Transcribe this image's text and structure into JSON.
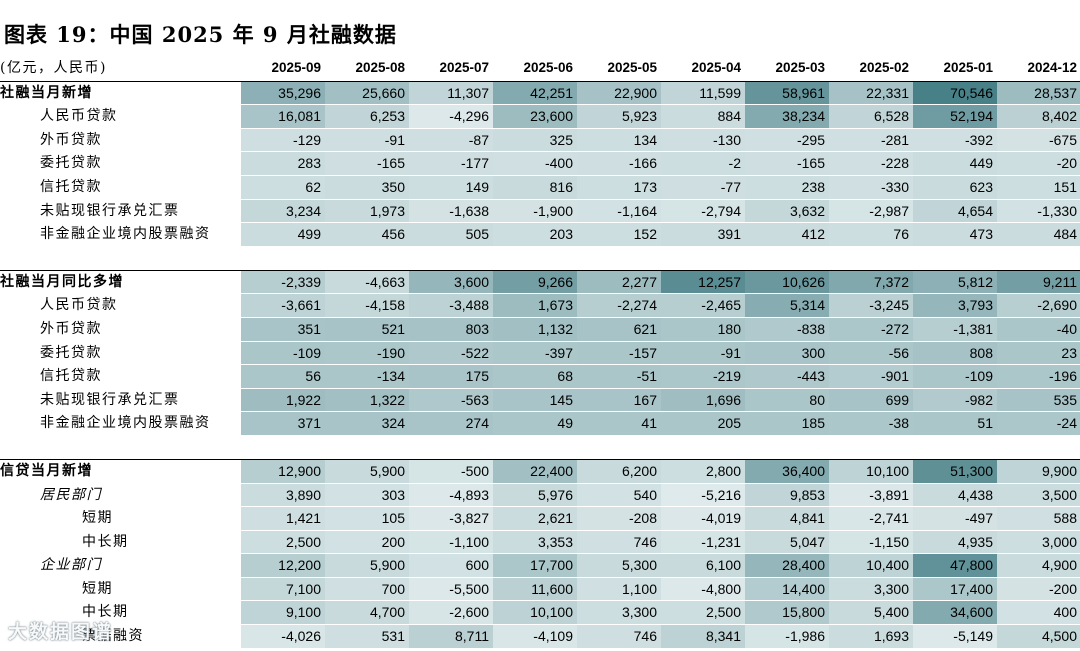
{
  "title": "图表 19：中国 2025 年 9 月社融数据",
  "unit": "(亿元，人民币)",
  "columns": [
    "2025-09",
    "2025-08",
    "2025-07",
    "2025-06",
    "2025-05",
    "2025-04",
    "2025-03",
    "2025-02",
    "2025-01",
    "2024-12"
  ],
  "sections": [
    {
      "rows": [
        {
          "label": "社融当月新增",
          "level": 0,
          "bold": true,
          "values": [
            "35,296",
            "25,660",
            "11,307",
            "42,251",
            "22,900",
            "11,599",
            "58,961",
            "22,331",
            "70,546",
            "28,537"
          ],
          "shade": [
            0.55,
            0.42,
            0.24,
            0.6,
            0.4,
            0.24,
            0.78,
            0.4,
            0.95,
            0.45
          ]
        },
        {
          "label": "人民币贷款",
          "level": 1,
          "values": [
            "16,081",
            "6,253",
            "-4,296",
            "23,600",
            "5,923",
            "884",
            "38,234",
            "6,528",
            "52,194",
            "8,402"
          ],
          "shade": [
            0.38,
            0.24,
            0.08,
            0.45,
            0.24,
            0.18,
            0.6,
            0.24,
            0.72,
            0.28
          ]
        },
        {
          "label": "外币贷款",
          "level": 1,
          "values": [
            "-129",
            "-91",
            "-87",
            "325",
            "134",
            "-130",
            "-295",
            "-281",
            "-392",
            "-675"
          ],
          "shade": [
            0.16,
            0.16,
            0.16,
            0.18,
            0.17,
            0.16,
            0.15,
            0.15,
            0.15,
            0.13
          ]
        },
        {
          "label": "委托贷款",
          "level": 1,
          "values": [
            "283",
            "-165",
            "-177",
            "-400",
            "-166",
            "-2",
            "-165",
            "-228",
            "449",
            "-20"
          ],
          "shade": [
            0.18,
            0.16,
            0.16,
            0.15,
            0.16,
            0.17,
            0.16,
            0.15,
            0.18,
            0.17
          ]
        },
        {
          "label": "信托贷款",
          "level": 1,
          "values": [
            "62",
            "350",
            "149",
            "816",
            "173",
            "-77",
            "238",
            "-330",
            "623",
            "151"
          ],
          "shade": [
            0.17,
            0.18,
            0.17,
            0.2,
            0.17,
            0.16,
            0.17,
            0.15,
            0.19,
            0.17
          ]
        },
        {
          "label": "未贴现银行承兑汇票",
          "level": 1,
          "values": [
            "3,234",
            "1,973",
            "-1,638",
            "-1,900",
            "-1,164",
            "-2,794",
            "3,632",
            "-2,987",
            "4,654",
            "-1,330"
          ],
          "shade": [
            0.22,
            0.2,
            0.13,
            0.13,
            0.14,
            0.12,
            0.22,
            0.12,
            0.24,
            0.14
          ]
        },
        {
          "label": "非金融企业境内股票融资",
          "level": 1,
          "values": [
            "499",
            "456",
            "505",
            "203",
            "152",
            "391",
            "412",
            "76",
            "473",
            "484"
          ],
          "shade": [
            0.18,
            0.18,
            0.18,
            0.17,
            0.17,
            0.18,
            0.18,
            0.17,
            0.18,
            0.18
          ]
        }
      ]
    },
    {
      "rows": [
        {
          "label": "社融当月同比多增",
          "level": 0,
          "bold": true,
          "values": [
            "-2,339",
            "-4,663",
            "3,600",
            "9,266",
            "2,277",
            "12,257",
            "10,626",
            "7,372",
            "5,812",
            "9,211"
          ],
          "shade": [
            0.3,
            0.2,
            0.5,
            0.7,
            0.45,
            0.85,
            0.75,
            0.62,
            0.55,
            0.7
          ]
        },
        {
          "label": "人民币贷款",
          "level": 1,
          "values": [
            "-3,661",
            "-4,158",
            "-3,488",
            "1,673",
            "-2,274",
            "-2,465",
            "5,314",
            "-3,245",
            "3,793",
            "-2,690"
          ],
          "shade": [
            0.26,
            0.22,
            0.27,
            0.45,
            0.3,
            0.3,
            0.58,
            0.28,
            0.5,
            0.29
          ]
        },
        {
          "label": "外币贷款",
          "level": 1,
          "values": [
            "351",
            "521",
            "803",
            "1,132",
            "621",
            "180",
            "-838",
            "-272",
            "-1,381",
            "-40"
          ],
          "shade": [
            0.38,
            0.39,
            0.4,
            0.42,
            0.39,
            0.37,
            0.34,
            0.36,
            0.3,
            0.37
          ]
        },
        {
          "label": "委托贷款",
          "level": 1,
          "values": [
            "-109",
            "-190",
            "-522",
            "-397",
            "-157",
            "-91",
            "300",
            "-56",
            "808",
            "23"
          ],
          "shade": [
            0.37,
            0.36,
            0.35,
            0.36,
            0.37,
            0.37,
            0.38,
            0.37,
            0.4,
            0.37
          ]
        },
        {
          "label": "信托贷款",
          "level": 1,
          "values": [
            "56",
            "-134",
            "175",
            "68",
            "-51",
            "-219",
            "-443",
            "-901",
            "-109",
            "-196"
          ],
          "shade": [
            0.37,
            0.37,
            0.38,
            0.37,
            0.37,
            0.36,
            0.35,
            0.32,
            0.37,
            0.36
          ]
        },
        {
          "label": "未贴现银行承兑汇票",
          "level": 1,
          "values": [
            "1,922",
            "1,322",
            "-563",
            "145",
            "167",
            "1,696",
            "80",
            "699",
            "-982",
            "535"
          ],
          "shade": [
            0.44,
            0.42,
            0.35,
            0.38,
            0.38,
            0.43,
            0.37,
            0.39,
            0.33,
            0.39
          ]
        },
        {
          "label": "非金融企业境内股票融资",
          "level": 1,
          "values": [
            "371",
            "324",
            "274",
            "49",
            "41",
            "205",
            "185",
            "-38",
            "51",
            "-24"
          ],
          "shade": [
            0.38,
            0.38,
            0.38,
            0.37,
            0.37,
            0.37,
            0.37,
            0.36,
            0.37,
            0.36
          ]
        }
      ]
    },
    {
      "rows": [
        {
          "label": "信贷当月新增",
          "level": 0,
          "bold": true,
          "values": [
            "12,900",
            "5,900",
            "-500",
            "22,400",
            "6,200",
            "2,800",
            "36,400",
            "10,100",
            "51,300",
            "9,900"
          ],
          "shade": [
            0.3,
            0.2,
            0.12,
            0.42,
            0.2,
            0.17,
            0.6,
            0.26,
            0.82,
            0.25
          ]
        },
        {
          "label": "居民部门",
          "level": 1,
          "italic": true,
          "values": [
            "3,890",
            "303",
            "-4,893",
            "5,976",
            "540",
            "-5,216",
            "9,853",
            "-3,891",
            "4,438",
            "3,500"
          ],
          "shade": [
            0.18,
            0.14,
            0.08,
            0.2,
            0.14,
            0.07,
            0.24,
            0.09,
            0.19,
            0.18
          ]
        },
        {
          "label": "短期",
          "level": 2,
          "values": [
            "1,421",
            "105",
            "-3,827",
            "2,621",
            "-208",
            "-4,019",
            "4,841",
            "-2,741",
            "-497",
            "588"
          ],
          "shade": [
            0.16,
            0.14,
            0.09,
            0.18,
            0.13,
            0.09,
            0.2,
            0.1,
            0.13,
            0.15
          ]
        },
        {
          "label": "中长期",
          "level": 2,
          "values": [
            "2,500",
            "200",
            "-1,100",
            "3,353",
            "746",
            "-1,231",
            "5,047",
            "-1,150",
            "4,935",
            "3,000"
          ],
          "shade": [
            0.17,
            0.14,
            0.12,
            0.18,
            0.15,
            0.12,
            0.2,
            0.12,
            0.2,
            0.17
          ]
        },
        {
          "label": "企业部门",
          "level": 1,
          "italic": true,
          "values": [
            "12,200",
            "5,900",
            "600",
            "17,700",
            "5,300",
            "6,100",
            "28,400",
            "10,400",
            "47,800",
            "4,900"
          ],
          "shade": [
            0.3,
            0.2,
            0.14,
            0.36,
            0.2,
            0.2,
            0.5,
            0.26,
            0.8,
            0.19
          ]
        },
        {
          "label": "短期",
          "level": 2,
          "values": [
            "7,100",
            "700",
            "-5,500",
            "11,600",
            "1,100",
            "-4,800",
            "14,400",
            "3,300",
            "17,400",
            "-200"
          ],
          "shade": [
            0.22,
            0.15,
            0.08,
            0.28,
            0.15,
            0.08,
            0.32,
            0.18,
            0.36,
            0.13
          ]
        },
        {
          "label": "中长期",
          "level": 2,
          "values": [
            "9,100",
            "4,700",
            "-2,600",
            "10,100",
            "3,300",
            "2,500",
            "15,800",
            "5,400",
            "34,600",
            "400"
          ],
          "shade": [
            0.25,
            0.2,
            0.11,
            0.27,
            0.17,
            0.17,
            0.34,
            0.2,
            0.6,
            0.14
          ]
        },
        {
          "label": "票据融资",
          "level": 2,
          "values": [
            "-4,026",
            "531",
            "8,711",
            "-4,109",
            "746",
            "8,341",
            "-1,986",
            "1,693",
            "-5,149",
            "4,500"
          ],
          "shade": [
            0.1,
            0.16,
            0.28,
            0.1,
            0.16,
            0.27,
            0.12,
            0.18,
            0.08,
            0.22
          ]
        }
      ]
    }
  ],
  "watermark": "大数据图谱",
  "colors": {
    "shade_light": "#eaf2f3",
    "shade_dark": "#3f7a82",
    "header_rule": "#000000"
  }
}
